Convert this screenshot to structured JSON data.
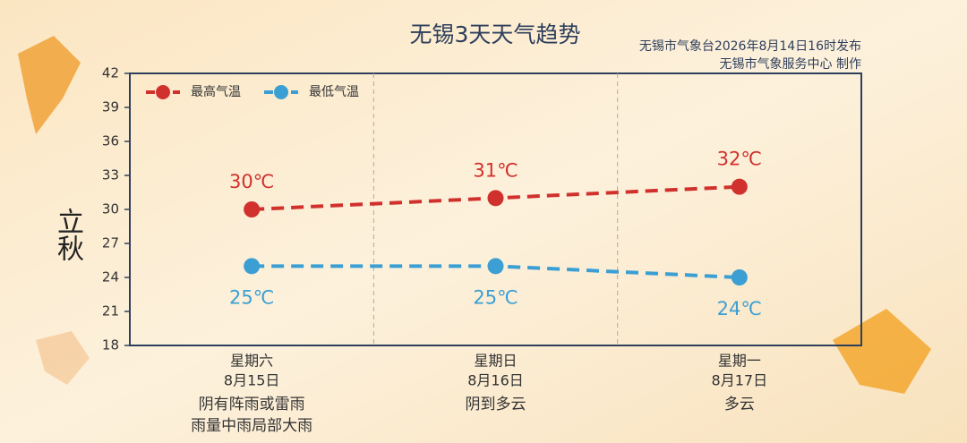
{
  "chart_data": {
    "type": "line",
    "title": "无锡3天天气趋势",
    "subtitle": [
      "无锡市气象台2026年8月14日16时发布",
      "无锡市气象服务中心 制作"
    ],
    "badge": "立秋",
    "categories": [
      "星期六",
      "星期日",
      "星期一"
    ],
    "dates": [
      "8月15日",
      "8月16日",
      "8月17日"
    ],
    "weather": [
      [
        "阴有阵雨或雷雨",
        "雨量中雨局部大雨"
      ],
      [
        "阴到多云"
      ],
      [
        "多云"
      ]
    ],
    "series": [
      {
        "name": "最高气温",
        "color": "#d0312d",
        "values": [
          30,
          31,
          32
        ],
        "value_labels": [
          "30℃",
          "31℃",
          "32℃"
        ]
      },
      {
        "name": "最低气温",
        "color": "#3b9fd4",
        "values": [
          25,
          25,
          24
        ],
        "value_labels": [
          "25℃",
          "25℃",
          "24℃"
        ]
      }
    ],
    "ylim": [
      18,
      42
    ],
    "yticks": [
      18,
      21,
      24,
      27,
      30,
      33,
      36,
      39,
      42
    ],
    "legend": "upper left"
  }
}
